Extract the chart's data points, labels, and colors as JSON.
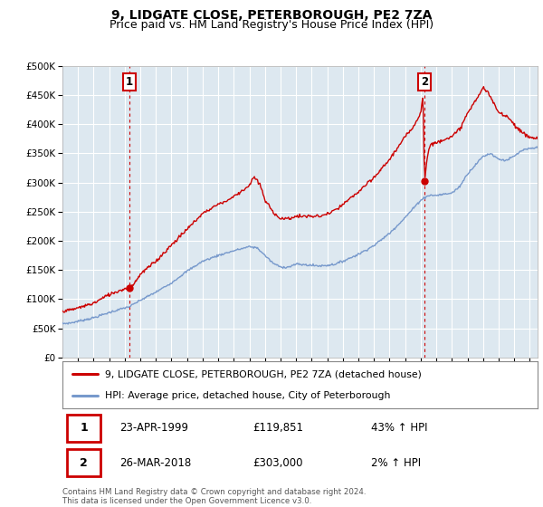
{
  "title": "9, LIDGATE CLOSE, PETERBOROUGH, PE2 7ZA",
  "subtitle": "Price paid vs. HM Land Registry's House Price Index (HPI)",
  "ylim": [
    0,
    500000
  ],
  "yticks": [
    0,
    50000,
    100000,
    150000,
    200000,
    250000,
    300000,
    350000,
    400000,
    450000,
    500000
  ],
  "xlim_start": 1995.0,
  "xlim_end": 2025.5,
  "sale1": {
    "date_num": 1999.31,
    "price": 119851,
    "label": "1",
    "pct": "43% ↑ HPI",
    "date_str": "23-APR-1999"
  },
  "sale2": {
    "date_num": 2018.24,
    "price": 303000,
    "label": "2",
    "pct": "2% ↑ HPI",
    "date_str": "26-MAR-2018"
  },
  "legend_line1": "9, LIDGATE CLOSE, PETERBOROUGH, PE2 7ZA (detached house)",
  "legend_line2": "HPI: Average price, detached house, City of Peterborough",
  "footer": "Contains HM Land Registry data © Crown copyright and database right 2024.\nThis data is licensed under the Open Government Licence v3.0.",
  "line_color_red": "#cc0000",
  "line_color_blue": "#7799cc",
  "bg_color": "#ffffff",
  "plot_bg_color": "#dde8f0",
  "grid_color": "#ffffff",
  "title_fontsize": 10,
  "subtitle_fontsize": 9,
  "axis_fontsize": 7,
  "table_box_color": "#cc0000",
  "hpi_anchors_y": [
    1995,
    1995.5,
    1996,
    1997,
    1998,
    1999,
    1999.3,
    2000,
    2001,
    2002,
    2003,
    2004,
    2005,
    2006,
    2007,
    2007.5,
    2008,
    2008.5,
    2009,
    2009.5,
    2010,
    2011,
    2011.5,
    2012,
    2012.5,
    2013,
    2014,
    2015,
    2016,
    2017,
    2018,
    2018.5,
    2019,
    2020,
    2020.5,
    2021,
    2022,
    2022.5,
    2023,
    2023.5,
    2024,
    2024.5,
    2025,
    2025.5
  ],
  "hpi_anchors_v": [
    58000,
    59000,
    62000,
    68000,
    77000,
    85000,
    87000,
    98000,
    112000,
    128000,
    148000,
    165000,
    175000,
    183000,
    190000,
    188000,
    175000,
    162000,
    155000,
    155000,
    160000,
    158000,
    157000,
    158000,
    160000,
    165000,
    177000,
    192000,
    213000,
    240000,
    270000,
    278000,
    278000,
    282000,
    293000,
    315000,
    345000,
    350000,
    340000,
    338000,
    345000,
    355000,
    358000,
    360000
  ],
  "red_anchors_y": [
    1995,
    1995.5,
    1996,
    1997,
    1998,
    1999,
    1999.31,
    1999.5,
    2000,
    2001,
    2002,
    2003,
    2004,
    2005,
    2005.5,
    2006,
    2007,
    2007.3,
    2007.7,
    2008,
    2008.5,
    2009,
    2009.5,
    2010,
    2011,
    2011.5,
    2012,
    2012.5,
    2013,
    2014,
    2015,
    2016,
    2017,
    2017.5,
    2018.0,
    2018.15,
    2018.24,
    2018.4,
    2018.6,
    2019,
    2019.5,
    2020,
    2020.5,
    2021,
    2021.5,
    2022,
    2022.3,
    2022.6,
    2023,
    2023.5,
    2024,
    2024.5,
    2025,
    2025.5
  ],
  "red_anchors_v": [
    80000,
    81000,
    85000,
    93000,
    108000,
    118000,
    119851,
    123000,
    143000,
    165000,
    193000,
    220000,
    247000,
    263000,
    268000,
    276000,
    295000,
    310000,
    295000,
    270000,
    250000,
    238000,
    238000,
    242000,
    242000,
    242000,
    246000,
    252000,
    262000,
    284000,
    308000,
    340000,
    378000,
    395000,
    420000,
    450000,
    303000,
    340000,
    365000,
    368000,
    375000,
    378000,
    392000,
    418000,
    440000,
    462000,
    455000,
    440000,
    420000,
    415000,
    400000,
    385000,
    378000,
    375000
  ]
}
